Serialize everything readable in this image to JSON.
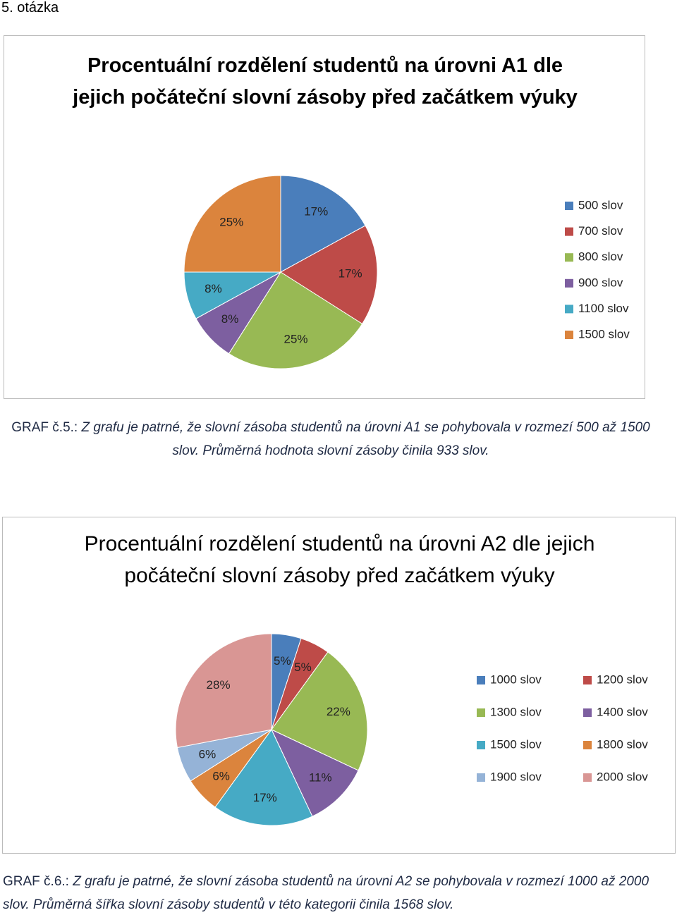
{
  "heading": "5. otázka",
  "chart_data": [
    {
      "type": "pie",
      "title": "Procentuální rozdělení studentů na úrovni A1 dle jejich počáteční slovní zásoby před začátkem výuky",
      "categories": [
        "500 slov",
        "700 slov",
        "800 slov",
        "900 slov",
        "1100 slov",
        "1500 slov"
      ],
      "values": [
        17,
        17,
        25,
        8,
        8,
        25
      ],
      "value_labels": [
        "17%",
        "17%",
        "25%",
        "8%",
        "8%",
        "25%"
      ],
      "colors": [
        "#4a7ebb",
        "#be4b48",
        "#98b954",
        "#7d5fa0",
        "#46aac5",
        "#db843d"
      ]
    },
    {
      "type": "pie",
      "title": "Procentuální rozdělení studentů na úrovni A2 dle jejich počáteční slovní zásoby před začátkem výuky",
      "categories": [
        "1000 slov",
        "1200 slov",
        "1300 slov",
        "1400 slov",
        "1500 slov",
        "1800 slov",
        "1900 slov",
        "2000 slov"
      ],
      "values": [
        5,
        5,
        22,
        11,
        17,
        6,
        6,
        28
      ],
      "value_labels": [
        "5%",
        "5%",
        "22%",
        "11%",
        "17%",
        "6%",
        "6%",
        "28%"
      ],
      "colors": [
        "#4a7ebb",
        "#be4b48",
        "#98b954",
        "#7d5fa0",
        "#46aac5",
        "#db843d",
        "#95b3d7",
        "#d99694"
      ]
    }
  ],
  "captions": [
    {
      "label": "GRAF č.5.:",
      "text": "Z grafu je patrné, že slovní zásoba studentů na úrovni A1 se pohybovala v rozmezí 500 až 1500 slov. Průměrná hodnota slovní zásoby činila 933 slov."
    },
    {
      "label": "GRAF č.6.:",
      "text": "Z grafu je patrné, že slovní zásoba studentů na úrovni A2 se pohybovala v rozmezí 1000 až 2000 slov. Průměrná šířka slovní zásoby studentů v této kategorii činila 1568 slov."
    }
  ]
}
